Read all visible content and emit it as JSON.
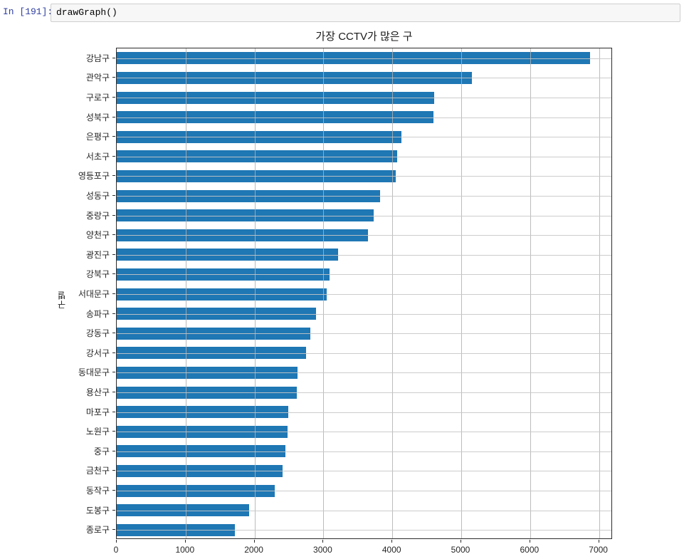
{
  "cell": {
    "prompt": "In [191]:",
    "code": "drawGraph()"
  },
  "chart_data": {
    "type": "bar",
    "orientation": "horizontal",
    "title": "가장 CCTV가 많은 구",
    "xlabel": "",
    "ylabel": "구별",
    "categories": [
      "강남구",
      "관악구",
      "구로구",
      "성북구",
      "은평구",
      "서초구",
      "영등포구",
      "성동구",
      "중랑구",
      "양천구",
      "광진구",
      "강북구",
      "서대문구",
      "송파구",
      "강동구",
      "강서구",
      "동대문구",
      "용산구",
      "마포구",
      "노원구",
      "중구",
      "금천구",
      "동작구",
      "도봉구",
      "종로구"
    ],
    "values": [
      6865,
      5150,
      4605,
      4600,
      4130,
      4070,
      4045,
      3820,
      3725,
      3650,
      3210,
      3090,
      3045,
      2890,
      2805,
      2745,
      2620,
      2610,
      2490,
      2480,
      2445,
      2405,
      2295,
      1920,
      1715
    ],
    "xlim": [
      0,
      7200
    ],
    "xticks": [
      0,
      1000,
      2000,
      3000,
      4000,
      5000,
      6000,
      7000
    ],
    "grid": true,
    "legend": "none",
    "bar_color": "#1f77b4",
    "grid_color": "#b0b0b0",
    "spine_color": "#2b2b2b"
  }
}
